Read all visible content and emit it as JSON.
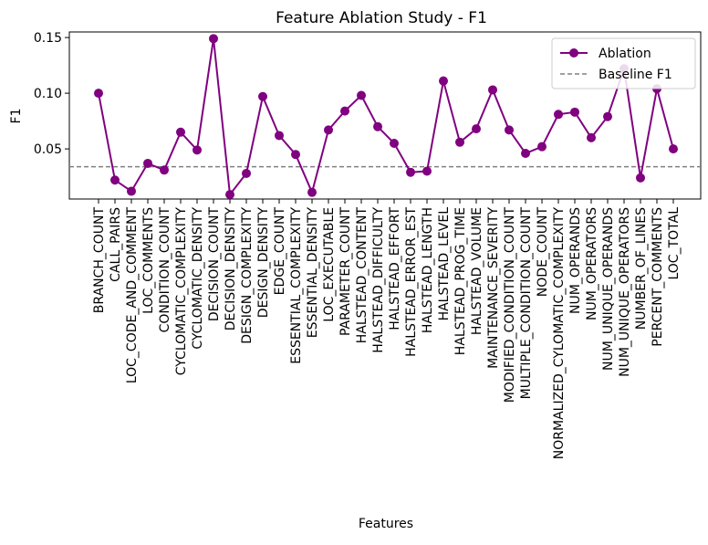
{
  "chart_data": {
    "type": "line",
    "title": "Feature Ablation Study - F1",
    "xlabel": "Features",
    "ylabel": "F1",
    "ylim": [
      0.005,
      0.155
    ],
    "yticks": [
      0.05,
      0.1,
      0.15
    ],
    "ytick_labels": [
      "0.05",
      "0.10",
      "0.15"
    ],
    "grid": false,
    "legend_position": "top-right",
    "categories": [
      "BRANCH_COUNT",
      "CALL_PAIRS",
      "LOC_CODE_AND_COMMENT",
      "LOC_COMMENTS",
      "CONDITION_COUNT",
      "CYCLOMATIC_COMPLEXITY",
      "CYCLOMATIC_DENSITY",
      "DECISION_COUNT",
      "DECISION_DENSITY",
      "DESIGN_COMPLEXITY",
      "DESIGN_DENSITY",
      "EDGE_COUNT",
      "ESSENTIAL_COMPLEXITY",
      "ESSENTIAL_DENSITY",
      "LOC_EXECUTABLE",
      "PARAMETER_COUNT",
      "HALSTEAD_CONTENT",
      "HALSTEAD_DIFFICULTY",
      "HALSTEAD_EFFORT",
      "HALSTEAD_ERROR_EST",
      "HALSTEAD_LENGTH",
      "HALSTEAD_LEVEL",
      "HALSTEAD_PROG_TIME",
      "HALSTEAD_VOLUME",
      "MAINTENANCE_SEVERITY",
      "MODIFIED_CONDITION_COUNT",
      "MULTIPLE_CONDITION_COUNT",
      "NODE_COUNT",
      "NORMALIZED_CYLOMATIC_COMPLEXITY",
      "NUM_OPERANDS",
      "NUM_OPERATORS",
      "NUM_UNIQUE_OPERANDS",
      "NUM_UNIQUE_OPERATORS",
      "NUMBER_OF_LINES",
      "PERCENT_COMMENTS",
      "LOC_TOTAL"
    ],
    "series": [
      {
        "name": "Ablation",
        "color": "#800080",
        "values": [
          0.1,
          0.022,
          0.012,
          0.037,
          0.031,
          0.065,
          0.049,
          0.149,
          0.009,
          0.028,
          0.097,
          0.062,
          0.045,
          0.011,
          0.067,
          0.084,
          0.098,
          0.07,
          0.055,
          0.029,
          0.03,
          0.111,
          0.056,
          0.068,
          0.103,
          0.067,
          0.046,
          0.052,
          0.081,
          0.083,
          0.06,
          0.079,
          0.122,
          0.024,
          0.104,
          0.05
        ]
      }
    ],
    "baseline": {
      "name": "Baseline F1",
      "value": 0.034,
      "color": "#808080"
    }
  }
}
